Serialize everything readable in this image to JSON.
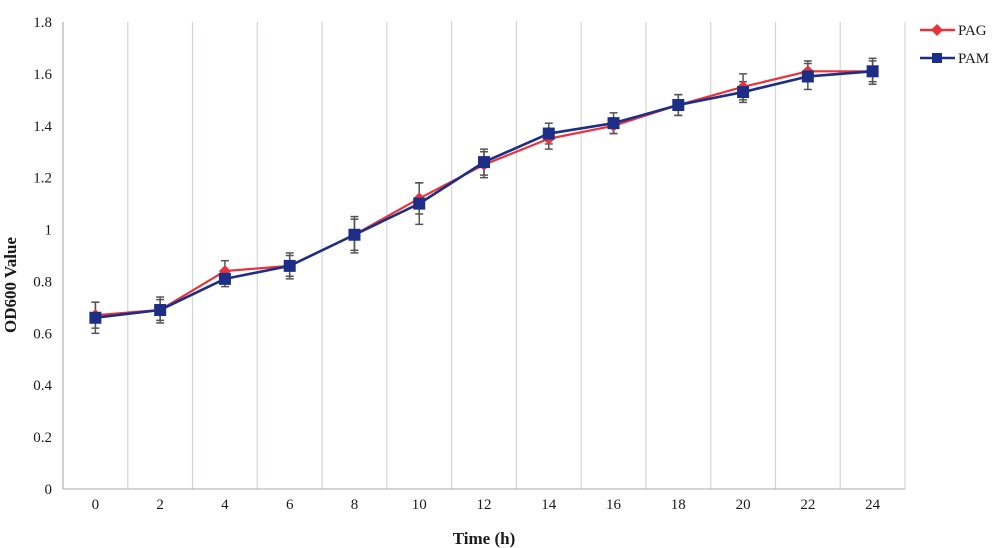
{
  "chart_data": {
    "type": "line",
    "xlabel": "Time (h)",
    "ylabel": "OD600 Value",
    "x": [
      0,
      2,
      4,
      6,
      8,
      10,
      12,
      14,
      16,
      18,
      20,
      22,
      24
    ],
    "xlim": [
      -1,
      25
    ],
    "ylim": [
      0,
      1.8
    ],
    "yticks": [
      0,
      0.2,
      0.4,
      0.6,
      0.8,
      1,
      1.2,
      1.4,
      1.6,
      1.8
    ],
    "ytick_labels": [
      "0",
      "0.2",
      "0.4",
      "0.6",
      "0.8",
      "1",
      "1.2",
      "1.4",
      "1.6",
      "1.8"
    ],
    "xtick_labels": [
      "0",
      "2",
      "4",
      "6",
      "8",
      "10",
      "12",
      "14",
      "16",
      "18",
      "20",
      "22",
      "24"
    ],
    "vertical_grid": true,
    "legend_position": "top-right",
    "series": [
      {
        "name": "PAG",
        "color": "#e8323c",
        "marker": "diamond",
        "values": [
          0.67,
          0.69,
          0.84,
          0.86,
          0.98,
          1.12,
          1.25,
          1.35,
          1.4,
          1.48,
          1.55,
          1.61,
          1.61
        ],
        "errors": [
          0.05,
          0.04,
          0.04,
          0.04,
          0.06,
          0.06,
          0.05,
          0.04,
          0.03,
          0.04,
          0.05,
          0.04,
          0.04
        ]
      },
      {
        "name": "PAM",
        "color": "#1c2e86",
        "marker": "square",
        "values": [
          0.66,
          0.69,
          0.81,
          0.86,
          0.98,
          1.1,
          1.26,
          1.37,
          1.41,
          1.48,
          1.53,
          1.59,
          1.61
        ],
        "errors": [
          0.06,
          0.05,
          0.03,
          0.05,
          0.07,
          0.08,
          0.05,
          0.04,
          0.04,
          0.04,
          0.04,
          0.05,
          0.05
        ]
      }
    ]
  }
}
